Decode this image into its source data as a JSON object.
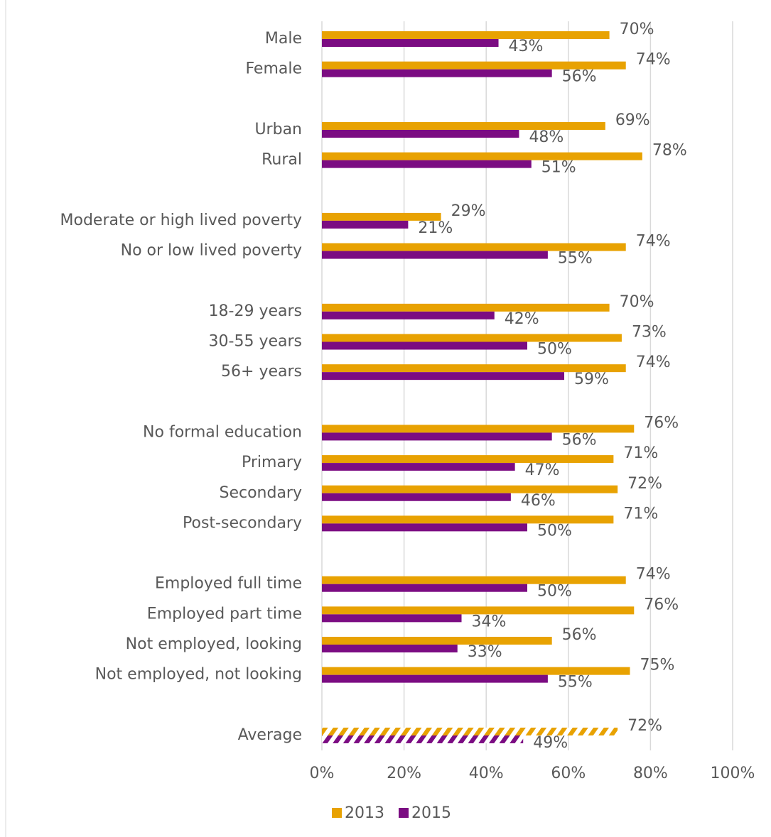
{
  "chart_data": {
    "type": "bar",
    "orientation": "horizontal",
    "categories": [
      "Male",
      "Female",
      null,
      "Urban",
      "Rural",
      null,
      "Moderate or high lived poverty",
      "No or low lived poverty",
      null,
      "18-29 years",
      "30-55 years",
      "56+ years",
      null,
      "No formal education",
      "Primary",
      "Secondary",
      "Post-secondary",
      null,
      "Employed full time",
      "Employed part time",
      "Not employed, looking",
      "Not employed, not looking",
      null,
      "Average"
    ],
    "series": [
      {
        "name": "2013",
        "color": "#e8a202",
        "values": [
          70,
          74,
          null,
          69,
          78,
          null,
          29,
          74,
          null,
          70,
          73,
          74,
          null,
          76,
          71,
          72,
          71,
          null,
          74,
          76,
          56,
          75,
          null,
          72
        ],
        "value_labels": [
          "70%",
          "74%",
          null,
          "69%",
          "78%",
          null,
          "29%",
          "74%",
          null,
          "70%",
          "73%",
          "74%",
          null,
          "76%",
          "71%",
          "72%",
          "71%",
          null,
          "74%",
          "76%",
          "56%",
          "75%",
          null,
          "72%"
        ]
      },
      {
        "name": "2015",
        "color": "#7b0c82",
        "values": [
          43,
          56,
          null,
          48,
          51,
          null,
          21,
          55,
          null,
          42,
          50,
          59,
          null,
          56,
          47,
          46,
          50,
          null,
          50,
          34,
          33,
          55,
          null,
          49
        ],
        "value_labels": [
          "43%",
          "56%",
          null,
          "48%",
          "51%",
          null,
          "21%",
          "55%",
          null,
          "42%",
          "50%",
          "59%",
          null,
          "56%",
          "47%",
          "46%",
          "50%",
          null,
          "50%",
          "34%",
          "33%",
          "55%",
          null,
          "49%"
        ]
      }
    ],
    "xlim": [
      0,
      100
    ],
    "xticks": [
      {
        "value": 0,
        "label": "0%"
      },
      {
        "value": 20,
        "label": "20%"
      },
      {
        "value": 40,
        "label": "40%"
      },
      {
        "value": 60,
        "label": "60%"
      },
      {
        "value": 80,
        "label": "80%"
      },
      {
        "value": 100,
        "label": "100%"
      }
    ],
    "grid": true,
    "legend": "bottom"
  }
}
